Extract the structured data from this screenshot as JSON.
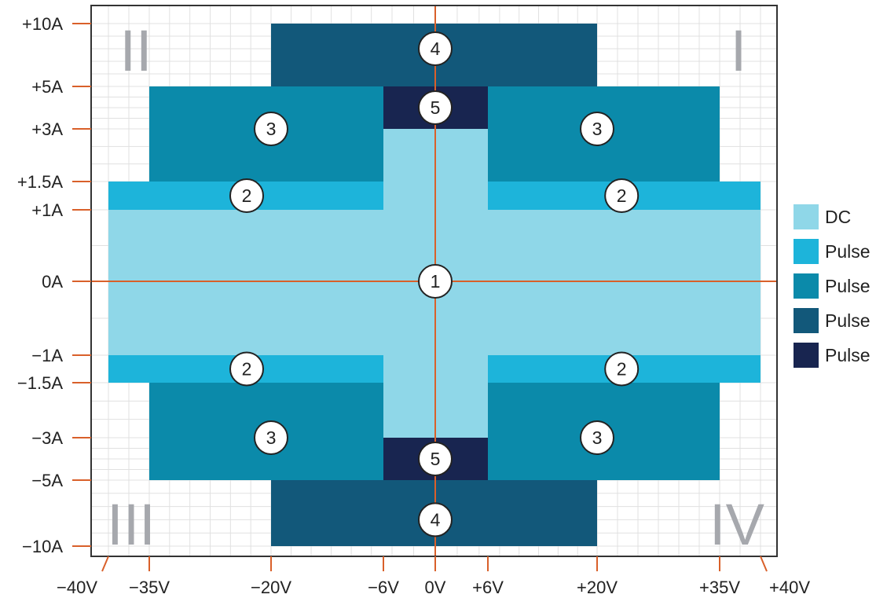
{
  "chart_data": {
    "type": "area",
    "title": "",
    "xlabel": "",
    "ylabel": "",
    "x_ticks": [
      {
        "label": "−40V",
        "value": -40
      },
      {
        "label": "−35V",
        "value": -35
      },
      {
        "label": "−20V",
        "value": -20
      },
      {
        "label": "−6V",
        "value": -6
      },
      {
        "label": "0V",
        "value": 0
      },
      {
        "label": "+6V",
        "value": 6
      },
      {
        "label": "+20V",
        "value": 20
      },
      {
        "label": "+35V",
        "value": 35
      },
      {
        "label": "+40V",
        "value": 40
      }
    ],
    "y_ticks": [
      {
        "label": "+10A",
        "value": 10
      },
      {
        "label": "+5A",
        "value": 5
      },
      {
        "label": "+3A",
        "value": 3
      },
      {
        "label": "+1.5A",
        "value": 1.5
      },
      {
        "label": "+1A",
        "value": 1
      },
      {
        "label": "0A",
        "value": 0
      },
      {
        "label": "−1A",
        "value": -1
      },
      {
        "label": "−1.5A",
        "value": -1.5
      },
      {
        "label": "−3A",
        "value": -3
      },
      {
        "label": "−5A",
        "value": -5
      },
      {
        "label": "−10A",
        "value": -10
      }
    ],
    "quadrants": [
      {
        "label": "I",
        "position": "top-right"
      },
      {
        "label": "II",
        "position": "top-left"
      },
      {
        "label": "III",
        "position": "bottom-left"
      },
      {
        "label": "IV",
        "position": "bottom-right"
      }
    ],
    "regions": [
      {
        "id": "1",
        "series": "DC",
        "color": "#8fd7e8",
        "polygon": [
          [
            -40,
            1
          ],
          [
            -6,
            1
          ],
          [
            -6,
            3
          ],
          [
            6,
            3
          ],
          [
            6,
            1
          ],
          [
            40,
            1
          ],
          [
            40,
            -1
          ],
          [
            6,
            -1
          ],
          [
            6,
            -3
          ],
          [
            -6,
            -3
          ],
          [
            -6,
            -1
          ],
          [
            -40,
            -1
          ]
        ]
      },
      {
        "id": "2",
        "series": "Pulse",
        "color": "#1db4da",
        "rects": [
          [
            -40,
            1,
            -6,
            1.5
          ],
          [
            6,
            1,
            40,
            1.5
          ],
          [
            -40,
            -1.5,
            -6,
            -1
          ],
          [
            6,
            -1.5,
            40,
            -1
          ]
        ]
      },
      {
        "id": "3",
        "series": "Pulse",
        "color": "#0b8aaa",
        "rects": [
          [
            -35,
            1.5,
            -6,
            5
          ],
          [
            6,
            1.5,
            35,
            5
          ],
          [
            -35,
            -5,
            -6,
            -1.5
          ],
          [
            6,
            -5,
            35,
            -1.5
          ]
        ]
      },
      {
        "id": "4",
        "series": "Pulse",
        "color": "#12587a",
        "rects": [
          [
            -20,
            5,
            20,
            10
          ],
          [
            -20,
            -10,
            20,
            -5
          ]
        ]
      },
      {
        "id": "5",
        "series": "Pulse",
        "color": "#182550",
        "rects": [
          [
            -6,
            3,
            6,
            5
          ],
          [
            -6,
            -5,
            6,
            -3
          ]
        ]
      }
    ],
    "markers": [
      {
        "label": "1",
        "x": 0,
        "y": 0
      },
      {
        "label": "2",
        "x": -23,
        "y": 1.25
      },
      {
        "label": "2",
        "x": 23,
        "y": 1.25
      },
      {
        "label": "2",
        "x": -23,
        "y": -1.25
      },
      {
        "label": "2",
        "x": 23,
        "y": -1.25
      },
      {
        "label": "3",
        "x": -20,
        "y": 3
      },
      {
        "label": "3",
        "x": 20,
        "y": 3
      },
      {
        "label": "3",
        "x": -20,
        "y": -3
      },
      {
        "label": "3",
        "x": 20,
        "y": -3
      },
      {
        "label": "4",
        "x": 0,
        "y": 8
      },
      {
        "label": "4",
        "x": 0,
        "y": -8
      },
      {
        "label": "5",
        "x": 0,
        "y": 4
      },
      {
        "label": "5",
        "x": 0,
        "y": -4
      }
    ],
    "legend": [
      {
        "label": "DC",
        "color": "#8fd7e8"
      },
      {
        "label": "Pulse",
        "color": "#1db4da"
      },
      {
        "label": "Pulse",
        "color": "#0b8aaa"
      },
      {
        "label": "Pulse",
        "color": "#12587a"
      },
      {
        "label": "Pulse",
        "color": "#182550"
      }
    ],
    "legend_position": "right",
    "grid": true,
    "axis_color": "#d9602a"
  }
}
